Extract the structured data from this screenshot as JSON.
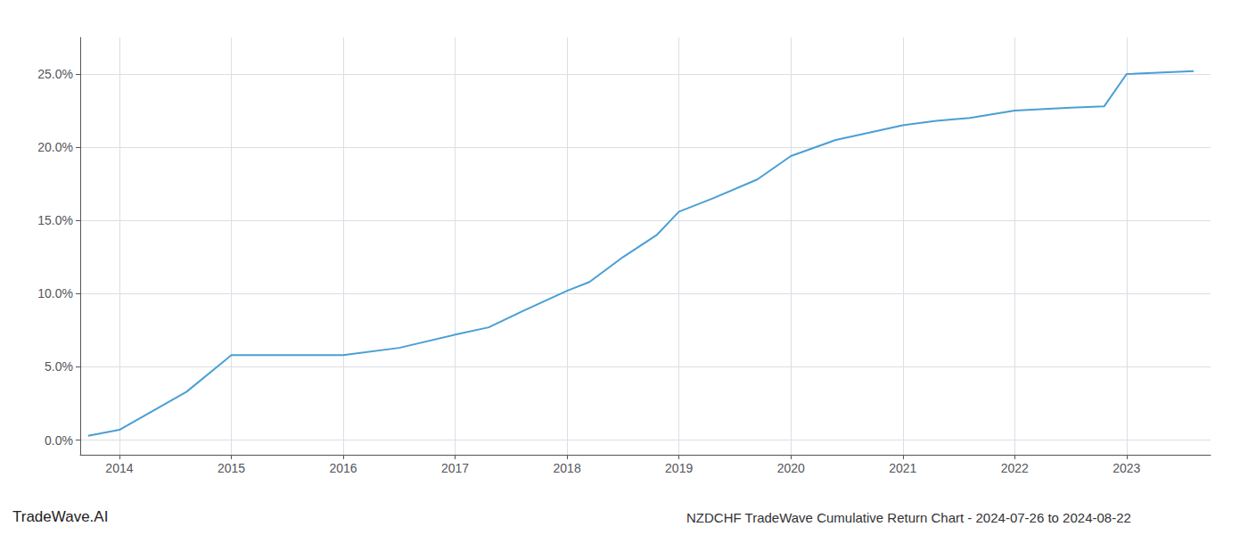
{
  "chart_data": {
    "type": "line",
    "title": "NZDCHF TradeWave Cumulative Return Chart - 2024-07-26 to 2024-08-22",
    "annotations": [
      "TradeWave.AI"
    ],
    "x": [
      2013.72,
      2014.0,
      2014.6,
      2015.0,
      2015.3,
      2015.6,
      2016.0,
      2016.5,
      2017.0,
      2017.3,
      2017.6,
      2018.0,
      2018.2,
      2018.5,
      2018.8,
      2019.0,
      2019.3,
      2019.7,
      2020.0,
      2020.4,
      2020.7,
      2021.0,
      2021.3,
      2021.6,
      2022.0,
      2022.5,
      2022.8,
      2023.0,
      2023.6
    ],
    "values": [
      0.003,
      0.007,
      0.033,
      0.058,
      0.058,
      0.058,
      0.058,
      0.063,
      0.072,
      0.077,
      0.088,
      0.102,
      0.108,
      0.125,
      0.14,
      0.156,
      0.165,
      0.178,
      0.194,
      0.205,
      0.21,
      0.215,
      0.218,
      0.22,
      0.225,
      0.227,
      0.228,
      0.25,
      0.252
    ],
    "color": "#4a9fd4",
    "xlim": [
      2013.65,
      2023.75
    ],
    "xticks": [
      2014,
      2015,
      2016,
      2017,
      2018,
      2019,
      2020,
      2021,
      2022,
      2023
    ],
    "ylim": [
      -0.01,
      0.275
    ],
    "yticks": [
      {
        "value": 0.0,
        "label": "0.0%"
      },
      {
        "value": 0.05,
        "label": "5.0%"
      },
      {
        "value": 0.1,
        "label": "10.0%"
      },
      {
        "value": 0.15,
        "label": "15.0%"
      },
      {
        "value": 0.2,
        "label": "20.0%"
      },
      {
        "value": 0.25,
        "label": "25.0%"
      }
    ],
    "grid": true
  }
}
